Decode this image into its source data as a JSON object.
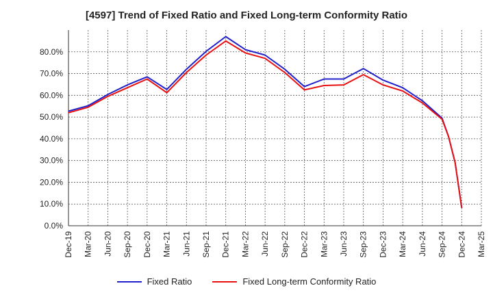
{
  "chart_data": {
    "type": "line",
    "title": "[4597]  Trend of Fixed Ratio and Fixed Long-term Conformity Ratio",
    "xlabel": "",
    "ylabel": "",
    "x": [
      "Dec-19",
      "Mar-20",
      "Jun-20",
      "Sep-20",
      "Dec-20",
      "Mar-21",
      "Jun-21",
      "Sep-21",
      "Dec-21",
      "Mar-22",
      "Jun-22",
      "Sep-22",
      "Dec-22",
      "Mar-23",
      "Jun-23",
      "Sep-23",
      "Dec-23",
      "Mar-24",
      "Jun-24",
      "Sep-24",
      "Dec-24",
      "Mar-25"
    ],
    "ylim": [
      0,
      90
    ],
    "yticks": [
      "0.0%",
      "10.0%",
      "20.0%",
      "30.0%",
      "40.0%",
      "50.0%",
      "60.0%",
      "70.0%",
      "80.0%"
    ],
    "grid": true,
    "legend_position": "bottom",
    "series": [
      {
        "name": "Fixed Ratio",
        "color": "#1f1fcc",
        "points": [
          [
            "Dec-19",
            52.7
          ],
          [
            "Mar-20",
            55.2
          ],
          [
            "Jun-20",
            60.4
          ],
          [
            "Sep-20",
            64.8
          ],
          [
            "Dec-20",
            68.5
          ],
          [
            "Mar-21",
            62.7
          ],
          [
            "Jun-21",
            72.0
          ],
          [
            "Sep-21",
            80.2
          ],
          [
            "Dec-21",
            87.0
          ],
          [
            "Mar-22",
            81.0
          ],
          [
            "Jun-22",
            78.5
          ],
          [
            "Sep-22",
            72.0
          ],
          [
            "Dec-22",
            64.0
          ],
          [
            "Mar-23",
            67.5
          ],
          [
            "Jun-23",
            67.5
          ],
          [
            "Sep-23",
            72.3
          ],
          [
            "Dec-23",
            67.0
          ],
          [
            "Mar-24",
            63.5
          ],
          [
            "Jun-24",
            57.5
          ],
          [
            "Sep-24",
            49.5
          ],
          [
            "Oct-24",
            41.0
          ],
          [
            "Nov-24",
            29.0
          ],
          [
            "Dec-24",
            8.2
          ]
        ]
      },
      {
        "name": "Fixed Long-term Conformity Ratio",
        "color": "#e81010",
        "points": [
          [
            "Dec-19",
            52.0
          ],
          [
            "Mar-20",
            54.5
          ],
          [
            "Jun-20",
            59.5
          ],
          [
            "Sep-20",
            63.5
          ],
          [
            "Dec-20",
            67.5
          ],
          [
            "Mar-21",
            61.2
          ],
          [
            "Jun-21",
            70.5
          ],
          [
            "Sep-21",
            78.5
          ],
          [
            "Dec-21",
            85.0
          ],
          [
            "Mar-22",
            79.5
          ],
          [
            "Jun-22",
            77.0
          ],
          [
            "Sep-22",
            70.5
          ],
          [
            "Dec-22",
            62.5
          ],
          [
            "Mar-23",
            64.5
          ],
          [
            "Jun-23",
            64.8
          ],
          [
            "Sep-23",
            69.5
          ],
          [
            "Dec-23",
            64.8
          ],
          [
            "Mar-24",
            62.0
          ],
          [
            "Jun-24",
            56.5
          ],
          [
            "Sep-24",
            49.0
          ],
          [
            "Oct-24",
            41.0
          ],
          [
            "Nov-24",
            29.0
          ],
          [
            "Dec-24",
            8.2
          ]
        ]
      }
    ]
  }
}
